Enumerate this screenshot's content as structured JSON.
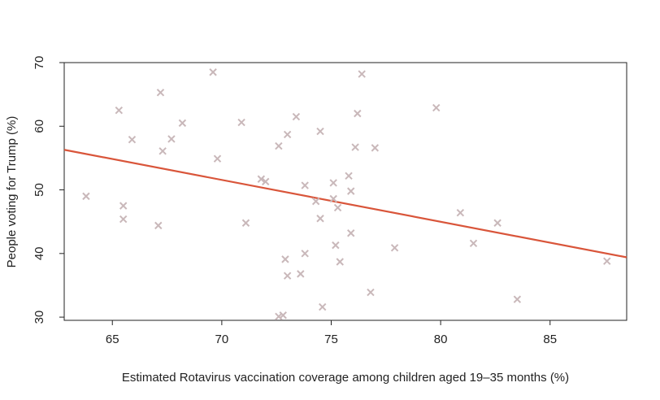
{
  "chart_data": {
    "type": "scatter",
    "title": "",
    "xlabel": "Estimated Rotavirus vaccination coverage among children aged 19–35 months (%)",
    "ylabel": "People voting for Trump (%)",
    "xlim": [
      62.8,
      88.5
    ],
    "ylim": [
      29.5,
      70
    ],
    "xticks": [
      65,
      70,
      75,
      80,
      85
    ],
    "yticks": [
      30,
      40,
      50,
      60,
      70
    ],
    "grid": false,
    "legend": "none",
    "marker": "x",
    "point_color": "#c9b8ba",
    "line_color": "#d9553a",
    "trend_line": {
      "x": [
        62.8,
        88.5
      ],
      "y": [
        56.3,
        39.4
      ]
    },
    "points": [
      {
        "x": 63.8,
        "y": 49.0
      },
      {
        "x": 65.3,
        "y": 62.5
      },
      {
        "x": 65.5,
        "y": 47.5
      },
      {
        "x": 65.5,
        "y": 45.4
      },
      {
        "x": 65.9,
        "y": 57.9
      },
      {
        "x": 67.1,
        "y": 44.4
      },
      {
        "x": 67.2,
        "y": 65.3
      },
      {
        "x": 67.3,
        "y": 56.1
      },
      {
        "x": 67.7,
        "y": 58.0
      },
      {
        "x": 68.2,
        "y": 60.5
      },
      {
        "x": 69.6,
        "y": 68.5
      },
      {
        "x": 69.8,
        "y": 54.9
      },
      {
        "x": 70.9,
        "y": 60.6
      },
      {
        "x": 71.1,
        "y": 44.8
      },
      {
        "x": 71.8,
        "y": 51.7
      },
      {
        "x": 72.0,
        "y": 51.3
      },
      {
        "x": 72.6,
        "y": 56.9
      },
      {
        "x": 72.6,
        "y": 30.1
      },
      {
        "x": 72.8,
        "y": 30.3
      },
      {
        "x": 72.9,
        "y": 39.1
      },
      {
        "x": 73.0,
        "y": 36.5
      },
      {
        "x": 73.0,
        "y": 58.7
      },
      {
        "x": 73.4,
        "y": 61.5
      },
      {
        "x": 73.6,
        "y": 36.8
      },
      {
        "x": 73.8,
        "y": 50.7
      },
      {
        "x": 73.8,
        "y": 40.0
      },
      {
        "x": 74.3,
        "y": 48.2
      },
      {
        "x": 74.5,
        "y": 59.2
      },
      {
        "x": 74.5,
        "y": 45.5
      },
      {
        "x": 74.6,
        "y": 31.6
      },
      {
        "x": 75.1,
        "y": 51.1
      },
      {
        "x": 75.1,
        "y": 48.6
      },
      {
        "x": 75.2,
        "y": 41.3
      },
      {
        "x": 75.3,
        "y": 47.2
      },
      {
        "x": 75.4,
        "y": 38.7
      },
      {
        "x": 75.8,
        "y": 52.2
      },
      {
        "x": 75.9,
        "y": 49.8
      },
      {
        "x": 75.9,
        "y": 43.2
      },
      {
        "x": 76.1,
        "y": 56.7
      },
      {
        "x": 76.2,
        "y": 62.0
      },
      {
        "x": 76.4,
        "y": 68.2
      },
      {
        "x": 76.8,
        "y": 33.9
      },
      {
        "x": 77.0,
        "y": 56.6
      },
      {
        "x": 77.9,
        "y": 40.9
      },
      {
        "x": 79.8,
        "y": 62.9
      },
      {
        "x": 80.9,
        "y": 46.4
      },
      {
        "x": 81.5,
        "y": 41.6
      },
      {
        "x": 82.6,
        "y": 44.8
      },
      {
        "x": 83.5,
        "y": 32.8
      },
      {
        "x": 87.6,
        "y": 38.8
      }
    ]
  }
}
